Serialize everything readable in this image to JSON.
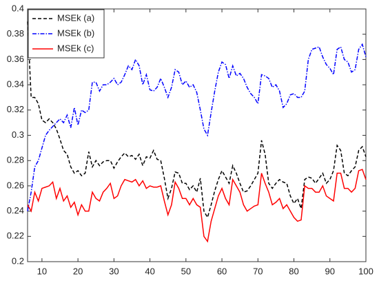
{
  "chart_data": {
    "type": "line",
    "x": [
      6,
      7,
      8,
      9,
      10,
      11,
      12,
      13,
      14,
      15,
      16,
      17,
      18,
      19,
      20,
      21,
      22,
      23,
      24,
      25,
      26,
      27,
      28,
      29,
      30,
      31,
      32,
      33,
      34,
      35,
      36,
      37,
      38,
      39,
      40,
      41,
      42,
      43,
      44,
      45,
      46,
      47,
      48,
      49,
      50,
      51,
      52,
      53,
      54,
      55,
      56,
      57,
      58,
      59,
      60,
      61,
      62,
      63,
      64,
      65,
      66,
      67,
      68,
      69,
      70,
      71,
      72,
      73,
      74,
      75,
      76,
      77,
      78,
      79,
      80,
      81,
      82,
      83,
      84,
      85,
      86,
      87,
      88,
      89,
      90,
      91,
      92,
      93,
      94,
      95,
      96,
      97,
      98,
      99,
      100
    ],
    "series": [
      {
        "name": "MSEk (a)",
        "color": "#000000",
        "dash": "5,3",
        "values": [
          0.39,
          0.33,
          0.33,
          0.325,
          0.312,
          0.31,
          0.313,
          0.31,
          0.305,
          0.297,
          0.288,
          0.285,
          0.275,
          0.27,
          0.272,
          0.268,
          0.27,
          0.287,
          0.275,
          0.28,
          0.276,
          0.279,
          0.28,
          0.28,
          0.274,
          0.279,
          0.283,
          0.286,
          0.283,
          0.284,
          0.281,
          0.285,
          0.276,
          0.283,
          0.282,
          0.288,
          0.281,
          0.28,
          0.266,
          0.25,
          0.258,
          0.271,
          0.27,
          0.262,
          0.262,
          0.257,
          0.26,
          0.255,
          0.266,
          0.24,
          0.235,
          0.245,
          0.256,
          0.265,
          0.272,
          0.267,
          0.262,
          0.276,
          0.27,
          0.262,
          0.255,
          0.256,
          0.26,
          0.265,
          0.27,
          0.296,
          0.285,
          0.262,
          0.258,
          0.262,
          0.265,
          0.263,
          0.262,
          0.252,
          0.246,
          0.25,
          0.242,
          0.265,
          0.267,
          0.266,
          0.262,
          0.266,
          0.27,
          0.262,
          0.265,
          0.272,
          0.292,
          0.288,
          0.27,
          0.268,
          0.272,
          0.275,
          0.288,
          0.291,
          0.283
        ]
      },
      {
        "name": "MSEk (b)",
        "color": "#0000ff",
        "dash": "6,2,1.5,2",
        "values": [
          0.24,
          0.255,
          0.275,
          0.28,
          0.29,
          0.3,
          0.304,
          0.307,
          0.31,
          0.313,
          0.31,
          0.316,
          0.306,
          0.322,
          0.308,
          0.32,
          0.318,
          0.32,
          0.342,
          0.342,
          0.335,
          0.34,
          0.34,
          0.342,
          0.345,
          0.34,
          0.342,
          0.348,
          0.355,
          0.352,
          0.36,
          0.355,
          0.34,
          0.348,
          0.336,
          0.335,
          0.338,
          0.345,
          0.338,
          0.33,
          0.338,
          0.352,
          0.35,
          0.34,
          0.343,
          0.338,
          0.34,
          0.334,
          0.32,
          0.305,
          0.3,
          0.318,
          0.335,
          0.35,
          0.358,
          0.356,
          0.345,
          0.355,
          0.347,
          0.349,
          0.345,
          0.338,
          0.333,
          0.33,
          0.325,
          0.348,
          0.347,
          0.345,
          0.338,
          0.34,
          0.335,
          0.322,
          0.325,
          0.332,
          0.333,
          0.33,
          0.33,
          0.335,
          0.36,
          0.368,
          0.369,
          0.37,
          0.362,
          0.356,
          0.353,
          0.348,
          0.368,
          0.37,
          0.36,
          0.358,
          0.35,
          0.352,
          0.368,
          0.372,
          0.362
        ]
      },
      {
        "name": "MSEk (c)",
        "color": "#ff0000",
        "dash": "",
        "values": [
          0.245,
          0.24,
          0.255,
          0.248,
          0.258,
          0.259,
          0.26,
          0.263,
          0.25,
          0.258,
          0.248,
          0.252,
          0.243,
          0.247,
          0.237,
          0.245,
          0.24,
          0.24,
          0.255,
          0.25,
          0.248,
          0.255,
          0.258,
          0.262,
          0.25,
          0.252,
          0.26,
          0.265,
          0.264,
          0.263,
          0.265,
          0.26,
          0.264,
          0.258,
          0.26,
          0.259,
          0.259,
          0.26,
          0.248,
          0.237,
          0.245,
          0.263,
          0.258,
          0.25,
          0.25,
          0.245,
          0.25,
          0.245,
          0.243,
          0.22,
          0.216,
          0.232,
          0.242,
          0.252,
          0.258,
          0.25,
          0.245,
          0.265,
          0.26,
          0.255,
          0.245,
          0.24,
          0.242,
          0.244,
          0.245,
          0.27,
          0.262,
          0.255,
          0.245,
          0.247,
          0.25,
          0.242,
          0.245,
          0.24,
          0.235,
          0.232,
          0.233,
          0.26,
          0.258,
          0.258,
          0.255,
          0.255,
          0.26,
          0.252,
          0.25,
          0.248,
          0.27,
          0.27,
          0.258,
          0.258,
          0.255,
          0.258,
          0.272,
          0.273,
          0.265
        ]
      }
    ],
    "xlim": [
      6,
      100
    ],
    "xticks": [
      10,
      20,
      30,
      40,
      50,
      60,
      70,
      80,
      90,
      100
    ],
    "ylim": [
      0.2,
      0.4
    ],
    "yticks": [
      0.2,
      0.22,
      0.24,
      0.26,
      0.28,
      0.3,
      0.32,
      0.34,
      0.36,
      0.38,
      0.4
    ],
    "legend": "top-left"
  }
}
